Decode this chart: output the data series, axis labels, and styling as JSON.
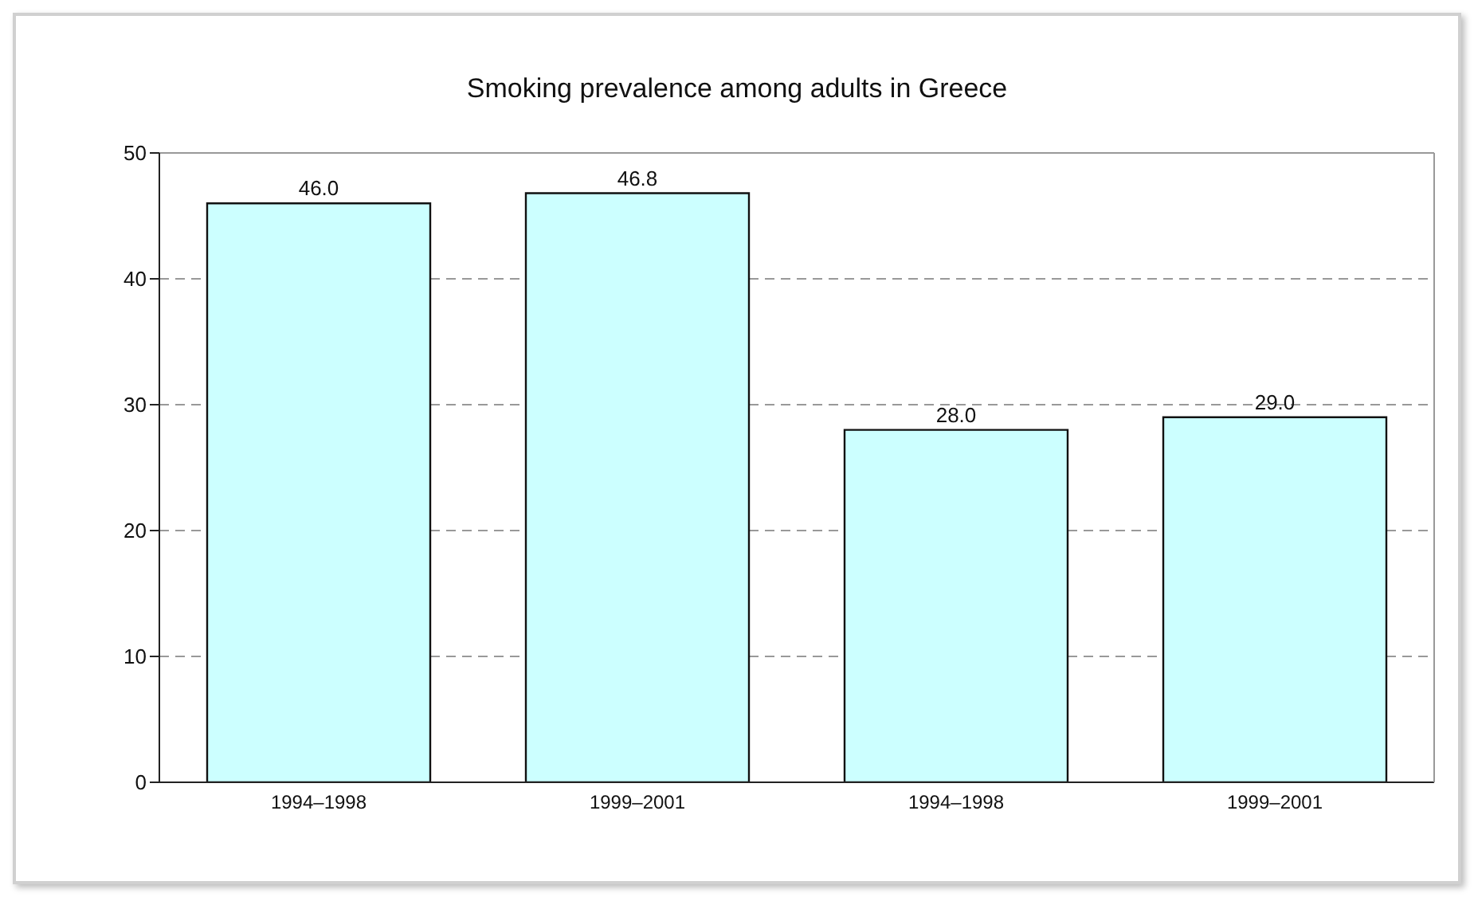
{
  "chart_data": {
    "type": "bar",
    "title": "Smoking prevalence among adults in Greece",
    "categories": [
      "1994–1998",
      "1999–2001",
      "1994–1998",
      "1999–2001"
    ],
    "values": [
      46.0,
      46.8,
      28.0,
      29.0
    ],
    "value_labels": [
      "46.0",
      "46.8",
      "28.0",
      "29.0"
    ],
    "color": "#ccffff",
    "ylim": [
      0,
      50
    ],
    "yticks": [
      0,
      10,
      20,
      30,
      40,
      50
    ],
    "grid": "y"
  }
}
